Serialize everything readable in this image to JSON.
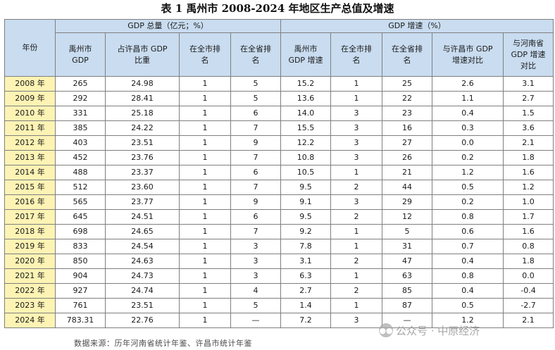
{
  "title": "表 1 禹州市 2008-2024 年地区生产总值及增速",
  "header": {
    "year": "年份",
    "group_total": "GDP 总量（亿元；%）",
    "group_growth": "GDP 增速（%）",
    "cols": [
      "禹州市\nGDP",
      "占许昌市 GDP\n比重",
      "在全市排\n名",
      "在全省排\n名",
      "禹州市\nGDP 增速",
      "在全市排\n名",
      "在全省排\n名",
      "与许昌市 GDP\n增速对比",
      "与河南省\nGDP 增速\n对比"
    ]
  },
  "rows": [
    [
      "2008 年",
      "265",
      "24.98",
      "1",
      "5",
      "15.2",
      "1",
      "25",
      "2.6",
      "3.1"
    ],
    [
      "2009 年",
      "292",
      "28.41",
      "1",
      "5",
      "13.6",
      "1",
      "22",
      "1.1",
      "2.7"
    ],
    [
      "2010 年",
      "331",
      "25.18",
      "1",
      "6",
      "14.0",
      "3",
      "23",
      "0.4",
      "1.5"
    ],
    [
      "2011 年",
      "385",
      "24.22",
      "1",
      "7",
      "15.5",
      "3",
      "16",
      "0.3",
      "3.6"
    ],
    [
      "2012 年",
      "403",
      "23.51",
      "1",
      "9",
      "12.2",
      "3",
      "27",
      "0.0",
      "2.1"
    ],
    [
      "2013 年",
      "452",
      "23.76",
      "1",
      "7",
      "10.8",
      "3",
      "26",
      "0.2",
      "1.8"
    ],
    [
      "2014 年",
      "488",
      "23.37",
      "1",
      "6",
      "10.5",
      "1",
      "21",
      "1.2",
      "1.6"
    ],
    [
      "2015 年",
      "512",
      "23.60",
      "1",
      "7",
      "9.5",
      "2",
      "44",
      "0.5",
      "1.2"
    ],
    [
      "2016 年",
      "565",
      "23.77",
      "1",
      "9",
      "9.1",
      "3",
      "29",
      "0.2",
      "1.0"
    ],
    [
      "2017 年",
      "645",
      "24.51",
      "1",
      "6",
      "9.5",
      "2",
      "12",
      "0.8",
      "1.7"
    ],
    [
      "2018 年",
      "698",
      "24.65",
      "1",
      "7",
      "9.2",
      "1",
      "5",
      "0.6",
      "1.6"
    ],
    [
      "2019 年",
      "833",
      "24.54",
      "1",
      "3",
      "7.8",
      "1",
      "31",
      "0.7",
      "0.8"
    ],
    [
      "2020 年",
      "850",
      "24.63",
      "1",
      "3",
      "3.1",
      "2",
      "47",
      "0.4",
      "1.8"
    ],
    [
      "2021 年",
      "904",
      "24.73",
      "1",
      "3",
      "6.3",
      "1",
      "63",
      "0.8",
      "0.0"
    ],
    [
      "2022 年",
      "927",
      "24.74",
      "1",
      "4",
      "2.7",
      "2",
      "85",
      "0.4",
      "-0.4"
    ],
    [
      "2023 年",
      "761",
      "23.51",
      "1",
      "5",
      "1.4",
      "1",
      "87",
      "0.5",
      "-2.7"
    ],
    [
      "2024 年",
      "783.31",
      "22.76",
      "1",
      "—",
      "7.2",
      "3",
      "—",
      "1.2",
      "2.1"
    ]
  ],
  "source": "数据来源：历年河南省统计年鉴、许昌市统计年鉴",
  "watermark": {
    "icon": "wechat-icon",
    "text": "公众号 · 中原经济"
  }
}
